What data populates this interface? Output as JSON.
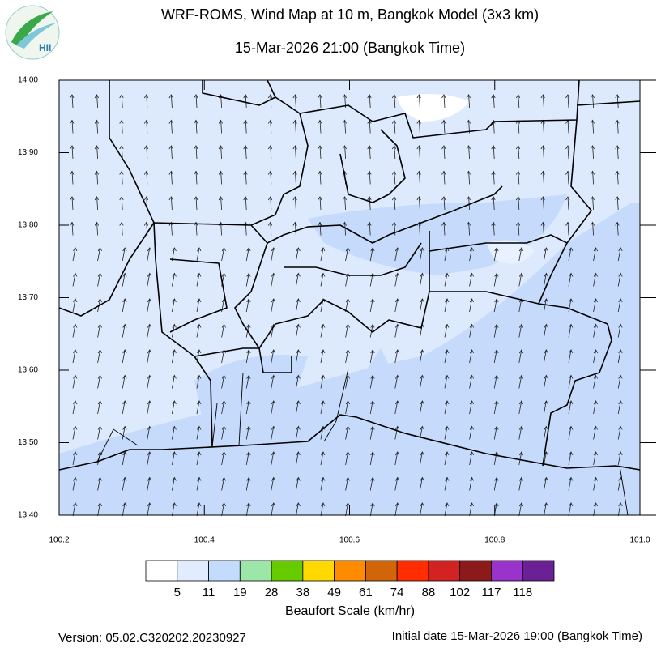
{
  "header": {
    "title": "WRF-ROMS, Wind Map at 10 m, Bangkok Model (3x3 km)",
    "subtitle": "15-Mar-2026 21:00 (Bangkok Time)",
    "logo_text": "HII"
  },
  "map": {
    "xlim": [
      100.2,
      101.0
    ],
    "ylim": [
      13.4,
      14.0
    ],
    "xticks": [
      100.2,
      100.4,
      100.6,
      100.8,
      {
        "value": 101.0,
        "label": "101.0"
      }
    ],
    "yticks": [
      {
        "value": 13.4,
        "label": "13.40"
      },
      {
        "value": 13.5,
        "label": "13.50"
      },
      {
        "value": 13.6,
        "label": "13.60"
      },
      {
        "value": 13.7,
        "label": "13.70"
      },
      {
        "value": 13.8,
        "label": "13.80"
      },
      {
        "value": 13.9,
        "label": "13.90"
      },
      {
        "value": 14.0,
        "label": "14.00"
      }
    ]
  },
  "legend": {
    "title": "Beaufort Scale (km/hr)",
    "colors": [
      "#ffffff",
      "#e1edff",
      "#c3dbfc",
      "#9ce6a8",
      "#66cc00",
      "#ffd900",
      "#ff8c00",
      "#d2640a",
      "#ff2d00",
      "#d32222",
      "#8c1a1a",
      "#9a33cc",
      "#6c2096"
    ],
    "labels": [
      5,
      11,
      19,
      28,
      38,
      49,
      61,
      74,
      88,
      102,
      117,
      118
    ]
  },
  "footer": {
    "version": "Version: 05.02.C320202.20230927",
    "initial": "Initial date 15-Mar-2026 19:00 (Bangkok Time)"
  }
}
